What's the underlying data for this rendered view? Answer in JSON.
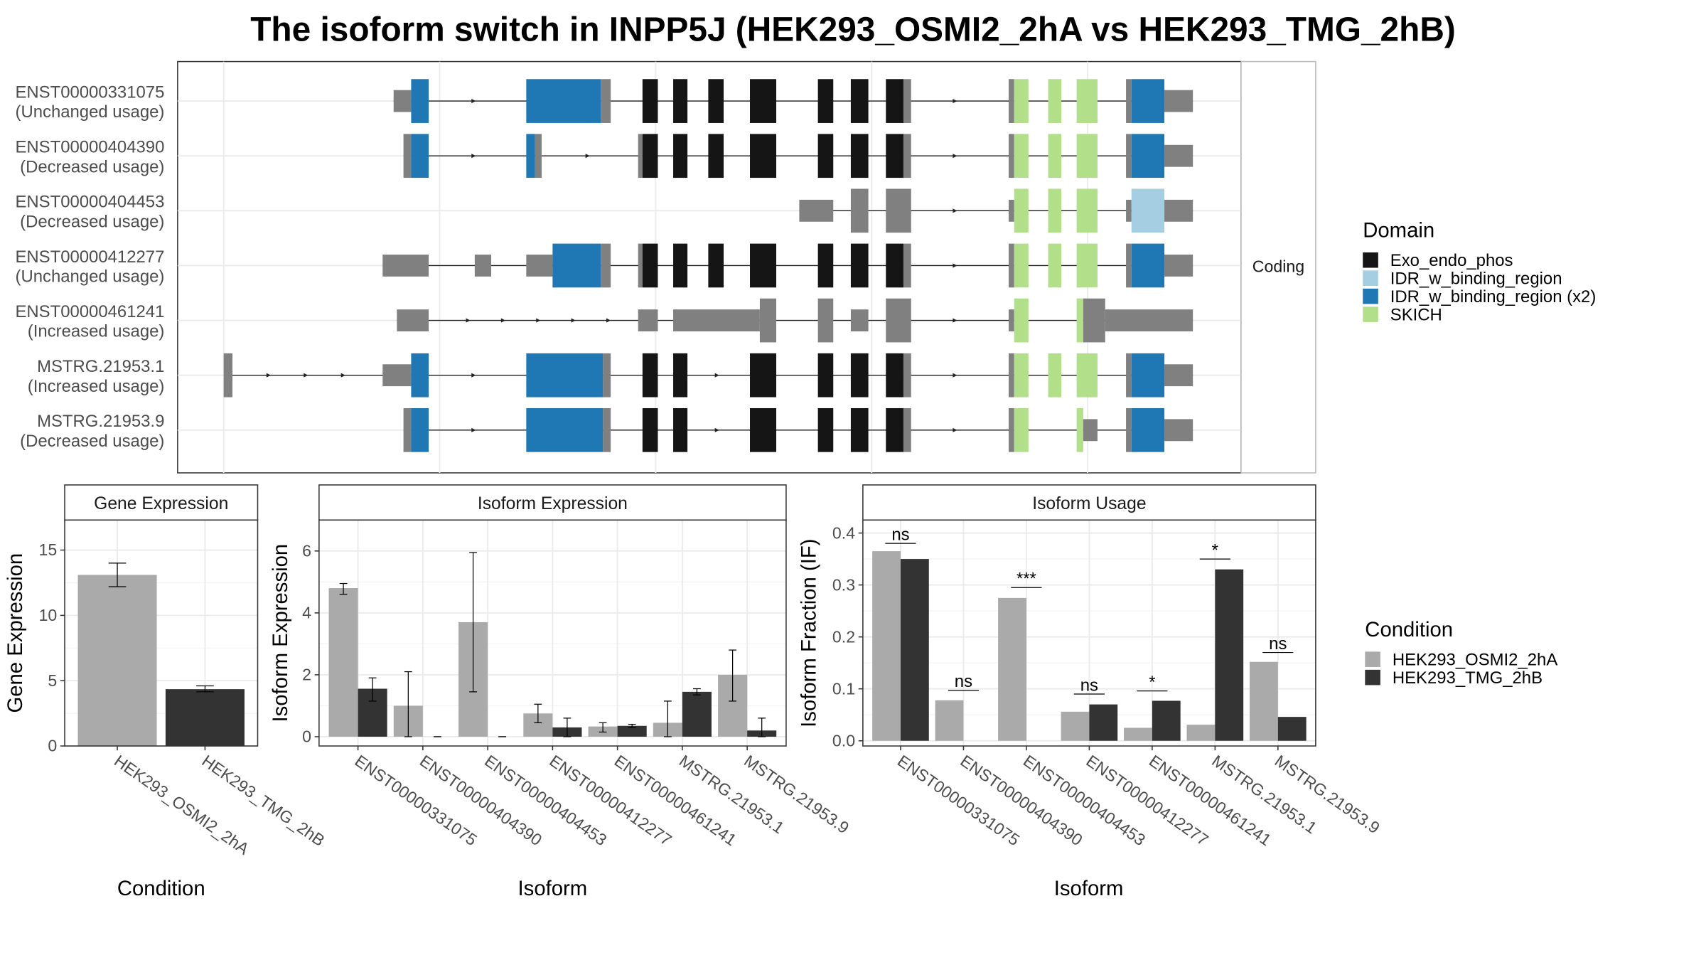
{
  "title": "The isoform switch in INPP5J (HEK293_OSMI2_2hA vs HEK293_TMG_2hB)",
  "colors": {
    "utr": "#808080",
    "exo": "#151515",
    "idr": "#a6cee3",
    "idr2": "#1f78b4",
    "skich": "#b2df8a",
    "cond1": "#aaaaaa",
    "cond2": "#333333",
    "panel_border": "#333333",
    "grid": "#ebebeb",
    "strip_fill": "#ffffff"
  },
  "structure": {
    "facet_label": "Coding",
    "transcripts": [
      {
        "id": "ENST00000331075",
        "usage": "(Unchanged usage)",
        "intron": [
          359,
          1088
        ],
        "blocks": [
          [
            359,
            375,
            "utr"
          ],
          [
            375,
            391,
            "idr2"
          ],
          [
            480,
            548,
            "idr2"
          ],
          [
            548,
            557,
            "utr"
          ],
          [
            586,
            600,
            "exo"
          ],
          [
            614,
            627,
            "exo"
          ],
          [
            646,
            660,
            "exo"
          ],
          [
            684,
            708,
            "exo"
          ],
          [
            746,
            760,
            "exo"
          ],
          [
            776,
            792,
            "exo"
          ],
          [
            808,
            824,
            "exo"
          ],
          [
            824,
            831,
            "utr"
          ],
          [
            920,
            925,
            "utr"
          ],
          [
            925,
            938,
            "skich"
          ],
          [
            956,
            968,
            "skich"
          ],
          [
            982,
            1001,
            "skich"
          ],
          [
            1027,
            1032,
            "utr"
          ],
          [
            1032,
            1062,
            "idr2"
          ],
          [
            1062,
            1088,
            "utr"
          ]
        ],
        "arrows": [
          433,
          872
        ]
      },
      {
        "id": "ENST00000404390",
        "usage": "(Decreased usage)",
        "intron": [
          368,
          1088
        ],
        "blocks": [
          [
            368,
            375,
            "utr"
          ],
          [
            375,
            391,
            "idr2"
          ],
          [
            480,
            488,
            "idr2"
          ],
          [
            488,
            494,
            "utr"
          ],
          [
            582,
            586,
            "utr"
          ],
          [
            586,
            600,
            "exo"
          ],
          [
            614,
            627,
            "exo"
          ],
          [
            646,
            660,
            "exo"
          ],
          [
            684,
            708,
            "exo"
          ],
          [
            746,
            760,
            "exo"
          ],
          [
            776,
            792,
            "exo"
          ],
          [
            808,
            824,
            "exo"
          ],
          [
            824,
            831,
            "utr"
          ],
          [
            920,
            925,
            "utr"
          ],
          [
            925,
            938,
            "skich"
          ],
          [
            956,
            968,
            "skich"
          ],
          [
            982,
            1001,
            "skich"
          ],
          [
            1027,
            1032,
            "utr"
          ],
          [
            1032,
            1062,
            "idr2"
          ],
          [
            1062,
            1088,
            "utr"
          ]
        ],
        "arrows": [
          433,
          537,
          872
        ]
      },
      {
        "id": "ENST00000404453",
        "usage": "(Decreased usage)",
        "intron": [
          729,
          1088
        ],
        "blocks": [
          [
            729,
            760,
            "utr"
          ],
          [
            776,
            779,
            "utr"
          ],
          [
            779,
            792,
            "utr"
          ],
          [
            808,
            831,
            "utr"
          ],
          [
            920,
            925,
            "utr"
          ],
          [
            925,
            938,
            "skich"
          ],
          [
            956,
            968,
            "skich"
          ],
          [
            982,
            1001,
            "skich"
          ],
          [
            1027,
            1032,
            "utr"
          ],
          [
            1032,
            1062,
            "idr"
          ],
          [
            1062,
            1088,
            "utr"
          ]
        ],
        "arrows": [
          872
        ]
      },
      {
        "id": "ENST00000412277",
        "usage": "(Unchanged usage)",
        "intron": [
          349,
          1088
        ],
        "blocks": [
          [
            349,
            391,
            "utr"
          ],
          [
            433,
            448,
            "utr"
          ],
          [
            480,
            504,
            "utr"
          ],
          [
            504,
            548,
            "idr2"
          ],
          [
            548,
            557,
            "utr"
          ],
          [
            582,
            586,
            "utr"
          ],
          [
            586,
            600,
            "exo"
          ],
          [
            614,
            627,
            "exo"
          ],
          [
            646,
            660,
            "exo"
          ],
          [
            684,
            708,
            "exo"
          ],
          [
            746,
            760,
            "exo"
          ],
          [
            776,
            792,
            "exo"
          ],
          [
            808,
            824,
            "exo"
          ],
          [
            824,
            831,
            "utr"
          ],
          [
            920,
            925,
            "utr"
          ],
          [
            925,
            938,
            "skich"
          ],
          [
            956,
            968,
            "skich"
          ],
          [
            982,
            1001,
            "skich"
          ],
          [
            1027,
            1032,
            "utr"
          ],
          [
            1032,
            1062,
            "idr2"
          ],
          [
            1062,
            1088,
            "utr"
          ]
        ],
        "arrows": [
          872
        ]
      },
      {
        "id": "ENST00000461241",
        "usage": "(Increased usage)",
        "intron": [
          362,
          1088
        ],
        "blocks": [
          [
            362,
            391,
            "utr"
          ],
          [
            582,
            600,
            "utr"
          ],
          [
            614,
            693,
            "utr"
          ],
          [
            693,
            708,
            "utr"
          ],
          [
            746,
            760,
            "utr"
          ],
          [
            776,
            792,
            "utr"
          ],
          [
            808,
            831,
            "utr"
          ],
          [
            920,
            925,
            "utr"
          ],
          [
            925,
            938,
            "skich"
          ],
          [
            982,
            988,
            "skich"
          ],
          [
            988,
            1008,
            "utr"
          ],
          [
            1008,
            1088,
            "utr"
          ]
        ],
        "arrows": [
          428,
          460,
          492,
          524,
          556,
          872
        ]
      },
      {
        "id": "MSTRG.21953.1",
        "usage": "(Increased usage)",
        "intron": [
          204,
          1088
        ],
        "blocks": [
          [
            204,
            212,
            "utr"
          ],
          [
            349,
            375,
            "utr"
          ],
          [
            375,
            391,
            "idr2"
          ],
          [
            480,
            550,
            "idr2"
          ],
          [
            550,
            557,
            "utr"
          ],
          [
            586,
            600,
            "exo"
          ],
          [
            614,
            627,
            "exo"
          ],
          [
            684,
            708,
            "exo"
          ],
          [
            746,
            760,
            "exo"
          ],
          [
            776,
            792,
            "exo"
          ],
          [
            808,
            824,
            "exo"
          ],
          [
            824,
            831,
            "utr"
          ],
          [
            920,
            925,
            "utr"
          ],
          [
            925,
            938,
            "skich"
          ],
          [
            956,
            968,
            "skich"
          ],
          [
            982,
            1001,
            "skich"
          ],
          [
            1027,
            1032,
            "utr"
          ],
          [
            1032,
            1062,
            "idr2"
          ],
          [
            1062,
            1088,
            "utr"
          ]
        ],
        "arrows": [
          246,
          280,
          314,
          433,
          655,
          872
        ]
      },
      {
        "id": "MSTRG.21953.9",
        "usage": "(Decreased usage)",
        "intron": [
          368,
          1088
        ],
        "blocks": [
          [
            368,
            375,
            "utr"
          ],
          [
            375,
            391,
            "idr2"
          ],
          [
            480,
            550,
            "idr2"
          ],
          [
            550,
            557,
            "utr"
          ],
          [
            586,
            600,
            "exo"
          ],
          [
            614,
            627,
            "exo"
          ],
          [
            684,
            708,
            "exo"
          ],
          [
            746,
            760,
            "exo"
          ],
          [
            776,
            792,
            "exo"
          ],
          [
            808,
            824,
            "exo"
          ],
          [
            824,
            831,
            "utr"
          ],
          [
            920,
            925,
            "utr"
          ],
          [
            925,
            938,
            "skich"
          ],
          [
            982,
            988,
            "skich"
          ],
          [
            988,
            1001,
            "utr"
          ],
          [
            1027,
            1032,
            "utr"
          ],
          [
            1032,
            1062,
            "idr2"
          ],
          [
            1062,
            1088,
            "utr"
          ]
        ],
        "arrows": [
          433,
          655,
          872
        ]
      }
    ]
  },
  "domain_legend": {
    "title": "Domain",
    "items": [
      {
        "label": "Exo_endo_phos",
        "color": "#151515"
      },
      {
        "label": "IDR_w_binding_region",
        "color": "#a6cee3"
      },
      {
        "label": "IDR_w_binding_region (x2)",
        "color": "#1f78b4"
      },
      {
        "label": "SKICH",
        "color": "#b2df8a"
      }
    ]
  },
  "condition_legend": {
    "title": "Condition",
    "items": [
      {
        "label": "HEK293_OSMI2_2hA",
        "color": "#aaaaaa"
      },
      {
        "label": "HEK293_TMG_2hB",
        "color": "#333333"
      }
    ]
  },
  "chart_data": [
    {
      "type": "bar",
      "strip": "Gene Expression",
      "xlabel": "Condition",
      "ylabel": "Gene Expression",
      "ylim": [
        0,
        17.3
      ],
      "yticks": [
        0,
        5,
        10,
        15
      ],
      "categories": [
        "HEK293_OSMI2_2hA",
        "HEK293_TMG_2hB"
      ],
      "values": [
        13.1,
        4.35
      ],
      "errors": [
        [
          12.2,
          14.0
        ],
        [
          4.15,
          4.6
        ]
      ]
    },
    {
      "type": "bar",
      "strip": "Isoform Expression",
      "xlabel": "Isoform",
      "ylabel": "Isoform Expression",
      "ylim": [
        -0.3,
        7.0
      ],
      "yticks": [
        0,
        2,
        4,
        6
      ],
      "categories": [
        "ENST00000331075",
        "ENST00000404390",
        "ENST00000404453",
        "ENST00000412277",
        "ENST00000461241",
        "MSTRG.21953.1",
        "MSTRG.21953.9"
      ],
      "series": [
        {
          "name": "HEK293_OSMI2_2hA",
          "values": [
            4.8,
            1.0,
            3.7,
            0.75,
            0.33,
            0.45,
            2.0
          ],
          "errors": [
            [
              4.6,
              4.95
            ],
            [
              0,
              2.1
            ],
            [
              1.45,
              5.95
            ],
            [
              0.45,
              1.05
            ],
            [
              0.15,
              0.45
            ],
            [
              0,
              1.15
            ],
            [
              1.15,
              2.8
            ]
          ]
        },
        {
          "name": "HEK293_TMG_2hB",
          "values": [
            1.55,
            0.0,
            0.0,
            0.3,
            0.35,
            1.45,
            0.2
          ],
          "errors": [
            [
              1.15,
              1.9
            ],
            [
              0,
              0
            ],
            [
              0,
              0
            ],
            [
              0,
              0.6
            ],
            [
              0.3,
              0.4
            ],
            [
              1.35,
              1.55
            ],
            [
              0,
              0.6
            ]
          ]
        }
      ]
    },
    {
      "type": "bar",
      "strip": "Isoform Usage",
      "xlabel": "Isoform",
      "ylabel": "Isoform Fraction (IF)",
      "ylim": [
        -0.01,
        0.425
      ],
      "yticks": [
        0.0,
        0.1,
        0.2,
        0.3,
        0.4
      ],
      "ytick_labels": [
        "0.0",
        "0.1",
        "0.2",
        "0.3",
        "0.4"
      ],
      "categories": [
        "ENST00000331075",
        "ENST00000404390",
        "ENST00000404453",
        "ENST00000412277",
        "ENST00000461241",
        "MSTRG.21953.1",
        "MSTRG.21953.9"
      ],
      "series": [
        {
          "name": "HEK293_OSMI2_2hA",
          "values": [
            0.365,
            0.078,
            0.275,
            0.056,
            0.025,
            0.031,
            0.152
          ]
        },
        {
          "name": "HEK293_TMG_2hB",
          "values": [
            0.35,
            0.0,
            0.0,
            0.07,
            0.077,
            0.33,
            0.046
          ]
        }
      ],
      "significance": [
        "ns",
        "ns",
        "***",
        "ns",
        "*",
        "*",
        "ns"
      ],
      "sig_y": [
        0.38,
        0.097,
        0.295,
        0.09,
        0.096,
        0.35,
        0.17
      ]
    }
  ]
}
